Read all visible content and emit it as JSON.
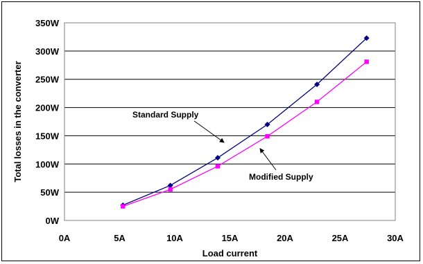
{
  "chart_data": {
    "type": "line",
    "title": "",
    "xlabel": "Load current",
    "ylabel": "Total losses in the converter",
    "xlim": [
      0,
      30
    ],
    "ylim": [
      0,
      350
    ],
    "x_ticks": [
      {
        "value": 0,
        "label": "0A"
      },
      {
        "value": 5,
        "label": "5A"
      },
      {
        "value": 10,
        "label": "10A"
      },
      {
        "value": 15,
        "label": "15A"
      },
      {
        "value": 20,
        "label": "20A"
      },
      {
        "value": 25,
        "label": "25A"
      },
      {
        "value": 30,
        "label": "30A"
      }
    ],
    "y_ticks": [
      {
        "value": 0,
        "label": "0W"
      },
      {
        "value": 50,
        "label": "50W"
      },
      {
        "value": 100,
        "label": "100W"
      },
      {
        "value": 150,
        "label": "150W"
      },
      {
        "value": 200,
        "label": "200W"
      },
      {
        "value": 250,
        "label": "250W"
      },
      {
        "value": 300,
        "label": "300W"
      },
      {
        "value": 350,
        "label": "350W"
      }
    ],
    "grid": "horizontal",
    "legend": "none",
    "series": [
      {
        "name": "Standard Supply",
        "color": "#000080",
        "marker": "diamond",
        "x": [
          5.3,
          9.6,
          13.9,
          18.4,
          22.9,
          27.4
        ],
        "y": [
          27,
          62,
          111,
          170,
          241,
          323
        ]
      },
      {
        "name": "Modified Supply",
        "color": "#ff00ff",
        "marker": "square",
        "x": [
          5.3,
          9.6,
          13.9,
          18.4,
          22.9,
          27.4
        ],
        "y": [
          25,
          55,
          96,
          149,
          210,
          281
        ]
      }
    ],
    "annotations": [
      {
        "text": "Standard Supply",
        "series": "Standard Supply"
      },
      {
        "text": "Modified Supply",
        "series": "Modified Supply"
      }
    ]
  }
}
